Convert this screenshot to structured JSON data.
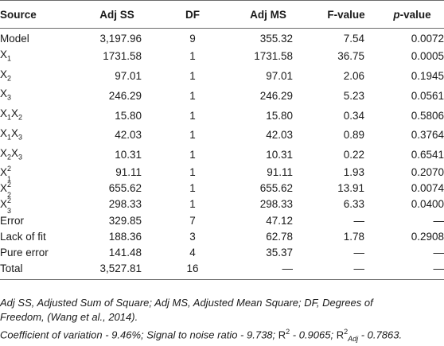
{
  "table": {
    "headers": [
      "Source",
      "Adj SS",
      "DF",
      "Adj MS",
      "F-value",
      "p",
      "-value"
    ],
    "rows": [
      {
        "source_main": "Model",
        "a": "",
        "b": "",
        "c": "",
        "d": "",
        "ss": "3,197.96",
        "df": "9",
        "ms": "355.32",
        "f": "7.54",
        "p": "0.0072"
      },
      {
        "source_main": "X",
        "a": "1",
        "b": "",
        "c": "",
        "d": "",
        "ss": "1731.58",
        "df": "1",
        "ms": "1731.58",
        "f": "36.75",
        "p": "0.0005"
      },
      {
        "source_main": "X",
        "a": "2",
        "b": "",
        "c": "",
        "d": "",
        "ss": "97.01",
        "df": "1",
        "ms": "97.01",
        "f": "2.06",
        "p": "0.1945"
      },
      {
        "source_main": "X",
        "a": "3",
        "b": "",
        "c": "",
        "d": "",
        "ss": "246.29",
        "df": "1",
        "ms": "246.29",
        "f": "5.23",
        "p": "0.0561"
      },
      {
        "source_main": "X",
        "a": "1",
        "b": "X",
        "c": "2",
        "d": "",
        "ss": "15.80",
        "df": "1",
        "ms": "15.80",
        "f": "0.34",
        "p": "0.5806"
      },
      {
        "source_main": "X",
        "a": "1",
        "b": "X",
        "c": "3",
        "d": "",
        "ss": "42.03",
        "df": "1",
        "ms": "42.03",
        "f": "0.89",
        "p": "0.3764"
      },
      {
        "source_main": "X",
        "a": "2",
        "b": "X",
        "c": "3",
        "d": "",
        "ss": "10.31",
        "df": "1",
        "ms": "10.31",
        "f": "0.22",
        "p": "0.6541"
      },
      {
        "source_main": "X",
        "a": "1",
        "b": "",
        "c": "",
        "d": "2",
        "ss": "91.11",
        "df": "1",
        "ms": "91.11",
        "f": "1.93",
        "p": "0.2070"
      },
      {
        "source_main": "X",
        "a": "2",
        "b": "",
        "c": "",
        "d": "2",
        "ss": "655.62",
        "df": "1",
        "ms": "655.62",
        "f": "13.91",
        "p": "0.0074"
      },
      {
        "source_main": "X",
        "a": "3",
        "b": "",
        "c": "",
        "d": "2",
        "ss": "298.33",
        "df": "1",
        "ms": "298.33",
        "f": "6.33",
        "p": "0.0400"
      },
      {
        "source_main": "Error",
        "a": "",
        "b": "",
        "c": "",
        "d": "",
        "ss": "329.85",
        "df": "7",
        "ms": "47.12",
        "f": "—",
        "p": "—"
      },
      {
        "source_main": "Lack of fit",
        "a": "",
        "b": "",
        "c": "",
        "d": "",
        "ss": "188.36",
        "df": "3",
        "ms": "62.78",
        "f": "1.78",
        "p": "0.2908"
      },
      {
        "source_main": "Pure error",
        "a": "",
        "b": "",
        "c": "",
        "d": "",
        "ss": "141.48",
        "df": "4",
        "ms": "35.37",
        "f": "—",
        "p": "—"
      },
      {
        "source_main": "Total",
        "a": "",
        "b": "",
        "c": "",
        "d": "",
        "ss": "3,527.81",
        "df": "16",
        "ms": "—",
        "f": "—",
        "p": "—"
      }
    ]
  },
  "footnote": {
    "line1": "Adj SS, Adjusted Sum of Square; Adj MS, Adjusted Mean Square; DF, Degrees of",
    "line2": "Freedom, (Wang et al., 2014).",
    "line3_a": "Coefficient of variation - 9.46%; Signal to noise ratio - 9.738; ",
    "line3_r2": "R",
    "line3_r2_sup": "2",
    "line3_b": " - 0.9065; ",
    "line3_r2adj": "R",
    "line3_r2adj_sup": "2",
    "line3_r2adj_sub": "Adj",
    "line3_c": " - 0.7863."
  }
}
